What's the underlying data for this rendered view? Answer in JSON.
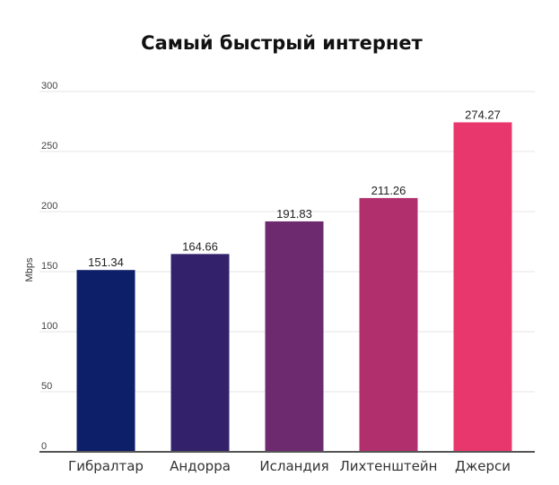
{
  "chart_data": {
    "type": "bar",
    "title": "Самый быстрый интернет",
    "xlabel": "",
    "ylabel": "Mbps",
    "ylim": [
      0,
      300
    ],
    "yticks": [
      0,
      50,
      100,
      150,
      200,
      250,
      300
    ],
    "grid": true,
    "categories": [
      "Гибралтар",
      "Андорра",
      "Исландия",
      "Лихтенштейн",
      "Джерси"
    ],
    "values": [
      151.34,
      164.66,
      191.83,
      211.26,
      274.27
    ],
    "data_labels": [
      "151.34",
      "164.66",
      "191.83",
      "211.26",
      "274.27"
    ],
    "colors": [
      "#0c1f68",
      "#33226b",
      "#6d2a6e",
      "#b02f6c",
      "#e8376d"
    ]
  }
}
